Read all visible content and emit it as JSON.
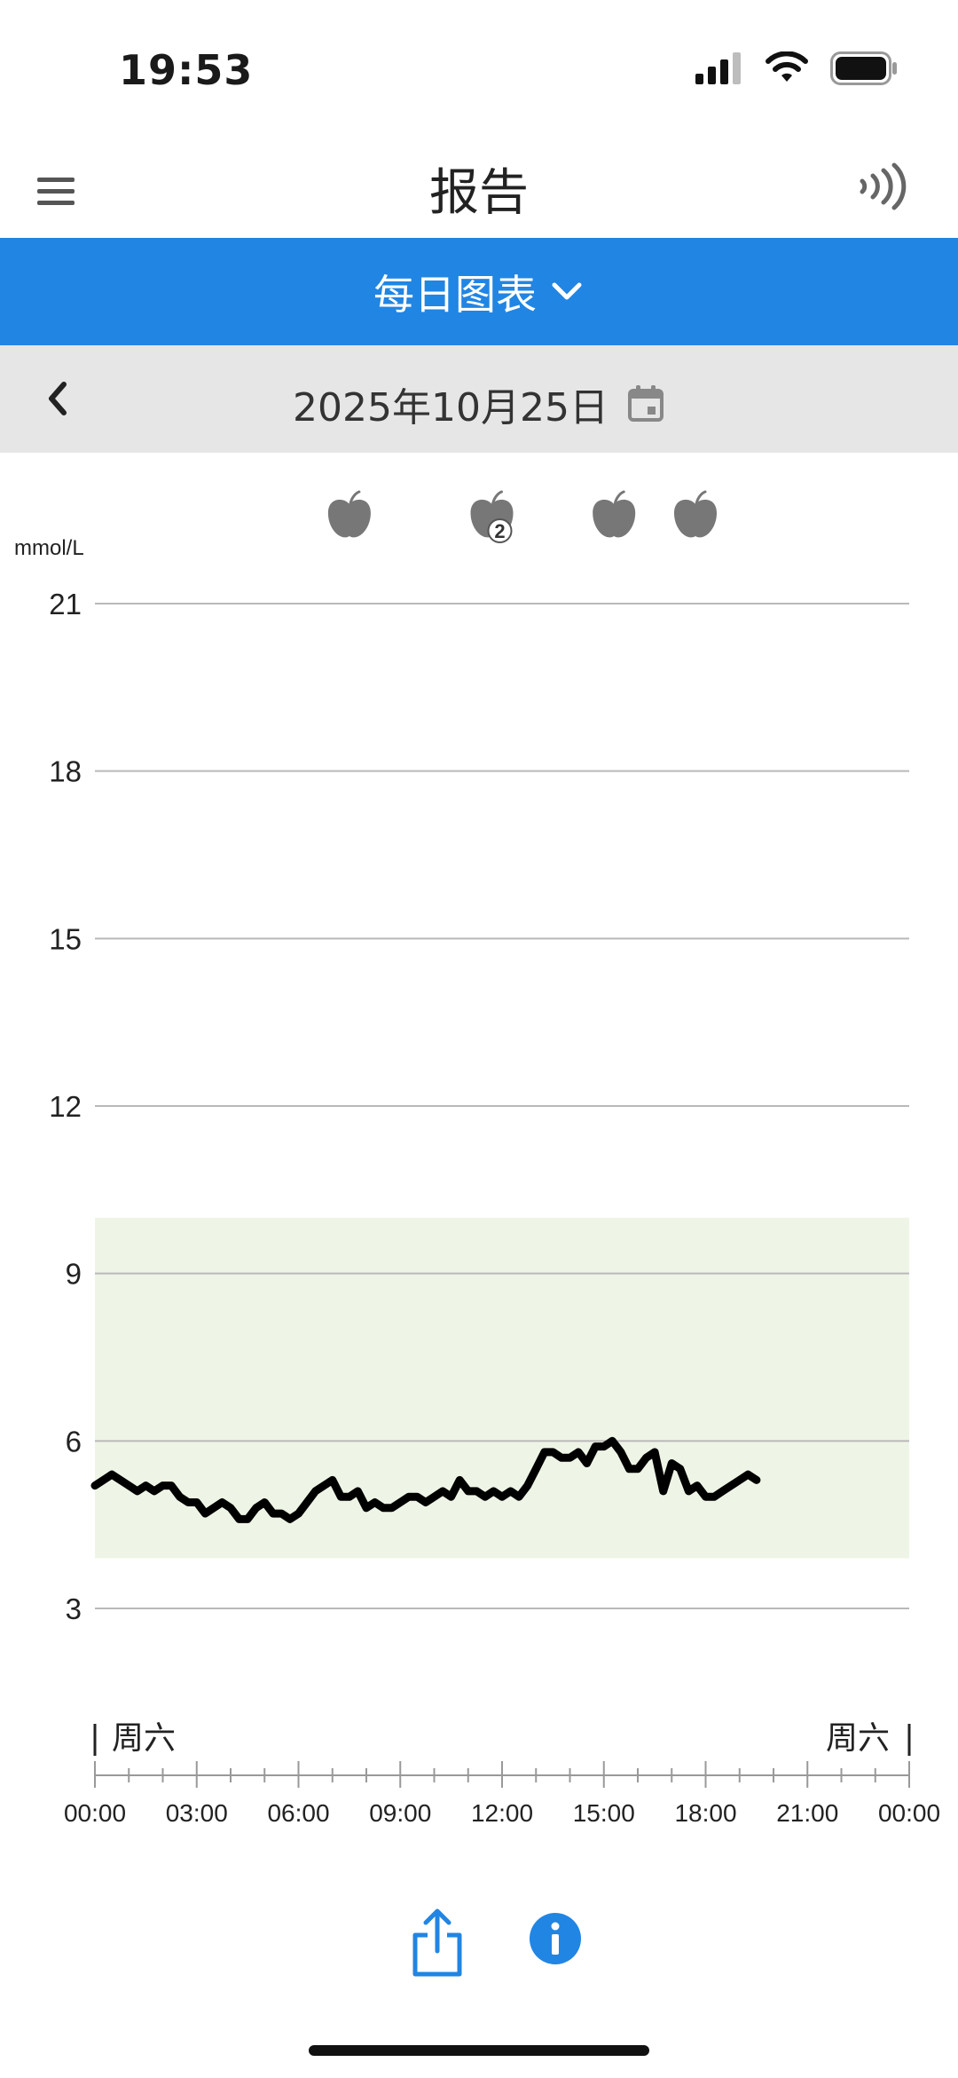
{
  "status_bar": {
    "time": "19:53"
  },
  "header": {
    "title": "报告"
  },
  "report_type": {
    "label": "每日图表"
  },
  "date_nav": {
    "date": "2025年10月25日"
  },
  "chart_data": {
    "type": "line",
    "unit_label": "mmol/L",
    "ylim": [
      3,
      21
    ],
    "y_ticks": [
      21,
      18,
      15,
      12,
      9,
      6,
      3
    ],
    "target_range": [
      3.9,
      10.0
    ],
    "target_color": "#eef5e6",
    "line_color": "#000000",
    "grid": true,
    "x_tick_labels": [
      "00:00",
      "03:00",
      "06:00",
      "09:00",
      "12:00",
      "15:00",
      "18:00",
      "21:00",
      "00:00"
    ],
    "day_label_start": "周六",
    "day_label_end": "周六",
    "meal_markers": [
      {
        "hour": 7.5,
        "count": 1
      },
      {
        "hour": 11.7,
        "count": 2
      },
      {
        "hour": 15.3,
        "count": 1
      },
      {
        "hour": 17.7,
        "count": 1
      }
    ],
    "series": [
      {
        "x": [
          0,
          0.25,
          0.5,
          0.75,
          1,
          1.25,
          1.5,
          1.75,
          2,
          2.25,
          2.5,
          2.75,
          3,
          3.25,
          3.5,
          3.75,
          4,
          4.25,
          4.5,
          4.75,
          5,
          5.25,
          5.5,
          5.75,
          6,
          6.25,
          6.5,
          6.75,
          7,
          7.25,
          7.5,
          7.75,
          8,
          8.25,
          8.5,
          8.75,
          9,
          9.25,
          9.5,
          9.75,
          10,
          10.25,
          10.5,
          10.75,
          11,
          11.25,
          11.5,
          11.75,
          12,
          12.25,
          12.5,
          12.75,
          13,
          13.25,
          13.5,
          13.75,
          14,
          14.25,
          14.5,
          14.75,
          15,
          15.25,
          15.5,
          15.75,
          16,
          16.25,
          16.5,
          16.75,
          17,
          17.25,
          17.5,
          17.75,
          18,
          18.25,
          18.5,
          18.75,
          19,
          19.25,
          19.5
        ],
        "y": [
          5.2,
          5.3,
          5.4,
          5.3,
          5.2,
          5.1,
          5.2,
          5.1,
          5.2,
          5.2,
          5.0,
          4.9,
          4.9,
          4.7,
          4.8,
          4.9,
          4.8,
          4.6,
          4.6,
          4.8,
          4.9,
          4.7,
          4.7,
          4.6,
          4.7,
          4.9,
          5.1,
          5.2,
          5.3,
          5.0,
          5.0,
          5.1,
          4.8,
          4.9,
          4.8,
          4.8,
          4.9,
          5.0,
          5.0,
          4.9,
          5.0,
          5.1,
          5.0,
          5.3,
          5.1,
          5.1,
          5.0,
          5.1,
          5.0,
          5.1,
          5.0,
          5.2,
          5.5,
          5.8,
          5.8,
          5.7,
          5.7,
          5.8,
          5.6,
          5.9,
          5.9,
          6.0,
          5.8,
          5.5,
          5.5,
          5.7,
          5.8,
          5.1,
          5.6,
          5.5,
          5.1,
          5.2,
          5.0,
          5.0,
          5.1,
          5.2,
          5.3,
          5.4,
          5.3
        ]
      }
    ]
  }
}
